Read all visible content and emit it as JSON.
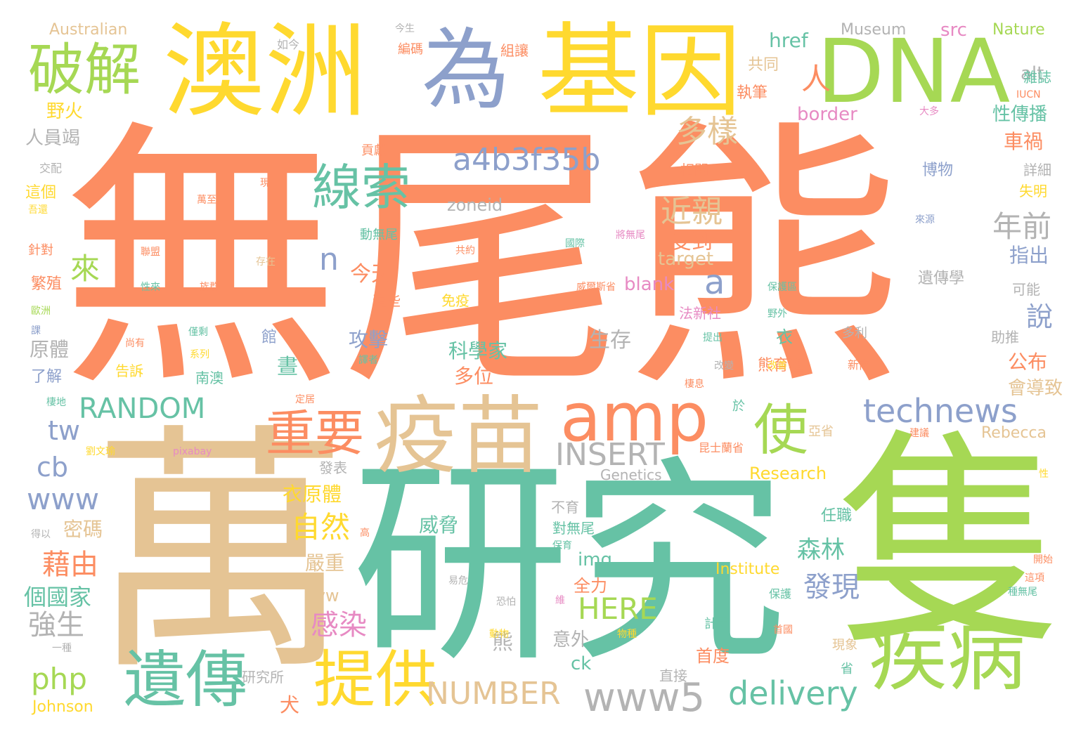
{
  "colors": {
    "orange": "#fc8d62",
    "green": "#a6d854",
    "teal": "#66c2a5",
    "tan": "#e5c494",
    "yellow": "#ffd92f",
    "blue": "#8da0cb",
    "pink": "#e78ac3",
    "gray": "#b3b3b3"
  },
  "words": [
    {
      "text": "無尾熊",
      "color": "orange"
    },
    {
      "text": "萬",
      "color": "tan"
    },
    {
      "text": "研究",
      "color": "teal"
    },
    {
      "text": "隻",
      "color": "green"
    },
    {
      "text": "澳洲",
      "color": "yellow"
    },
    {
      "text": "為",
      "color": "blue"
    },
    {
      "text": "基因",
      "color": "yellow"
    },
    {
      "text": "DNA",
      "color": "green"
    },
    {
      "text": "疫苗",
      "color": "tan"
    },
    {
      "text": "疾病",
      "color": "green"
    },
    {
      "text": "amp",
      "color": "orange"
    },
    {
      "text": "遺傳",
      "color": "teal"
    },
    {
      "text": "提供",
      "color": "yellow"
    },
    {
      "text": "破解",
      "color": "green"
    },
    {
      "text": "線索",
      "color": "teal"
    },
    {
      "text": "重要",
      "color": "orange"
    },
    {
      "text": "使",
      "color": "green"
    },
    {
      "text": "www5",
      "color": "gray"
    },
    {
      "text": "technews",
      "color": "blue"
    },
    {
      "text": "delivery",
      "color": "teal"
    },
    {
      "text": "a4b3f35b",
      "color": "blue"
    },
    {
      "text": "RANDOM",
      "color": "teal"
    },
    {
      "text": "INSERT",
      "color": "gray"
    },
    {
      "text": "NUMBER",
      "color": "tan"
    },
    {
      "text": "HERE",
      "color": "green"
    },
    {
      "text": "www",
      "color": "blue"
    },
    {
      "text": "php",
      "color": "green"
    },
    {
      "text": "cb",
      "color": "blue"
    },
    {
      "text": "tw",
      "color": "blue"
    },
    {
      "text": "a",
      "color": "blue"
    },
    {
      "text": "n",
      "color": "blue"
    },
    {
      "text": "多樣",
      "color": "tan"
    },
    {
      "text": "近親",
      "color": "tan"
    },
    {
      "text": "年前",
      "color": "gray"
    },
    {
      "text": "人",
      "color": "orange"
    },
    {
      "text": "來",
      "color": "green"
    },
    {
      "text": "自然",
      "color": "yellow"
    },
    {
      "text": "藉由",
      "color": "orange"
    },
    {
      "text": "感染",
      "color": "pink"
    },
    {
      "text": "發現",
      "color": "blue"
    },
    {
      "text": "森林",
      "color": "teal"
    },
    {
      "text": "強生",
      "color": "gray"
    },
    {
      "text": "個國家",
      "color": "teal"
    },
    {
      "text": "Australian",
      "color": "tan"
    },
    {
      "text": "Museum",
      "color": "gray"
    },
    {
      "text": "Nature",
      "color": "green"
    },
    {
      "text": "href",
      "color": "teal"
    },
    {
      "text": "src",
      "color": "pink"
    },
    {
      "text": "alt",
      "color": "gray"
    },
    {
      "text": "border",
      "color": "pink"
    },
    {
      "text": "zoneid",
      "color": "gray"
    },
    {
      "text": "target",
      "color": "tan"
    },
    {
      "text": "blank",
      "color": "pink"
    },
    {
      "text": "img",
      "color": "teal"
    },
    {
      "text": "avw",
      "color": "tan"
    },
    {
      "text": "ck",
      "color": "teal"
    },
    {
      "text": "Rebecca",
      "color": "tan"
    },
    {
      "text": "Research",
      "color": "yellow"
    },
    {
      "text": "Genetics",
      "color": "gray"
    },
    {
      "text": "Institute",
      "color": "yellow"
    },
    {
      "text": "Johnson",
      "color": "yellow"
    },
    {
      "text": "pixabay",
      "color": "pink"
    },
    {
      "text": "IUCN",
      "color": "orange"
    },
    {
      "text": "野火",
      "color": "yellow"
    },
    {
      "text": "人員竭",
      "color": "gray"
    },
    {
      "text": "共同",
      "color": "tan"
    },
    {
      "text": "執筆",
      "color": "orange"
    },
    {
      "text": "性傳播",
      "color": "teal"
    },
    {
      "text": "車禍",
      "color": "orange"
    },
    {
      "text": "受到",
      "color": "orange"
    },
    {
      "text": "指出",
      "color": "blue"
    },
    {
      "text": "今天",
      "color": "orange"
    },
    {
      "text": "攻擊",
      "color": "blue"
    },
    {
      "text": "生存",
      "color": "gray"
    },
    {
      "text": "科學家",
      "color": "teal"
    },
    {
      "text": "多位",
      "color": "orange"
    },
    {
      "text": "原體",
      "color": "gray"
    },
    {
      "text": "說",
      "color": "blue"
    },
    {
      "text": "公布",
      "color": "orange"
    },
    {
      "text": "衣",
      "color": "teal"
    },
    {
      "text": "會導致",
      "color": "tan"
    },
    {
      "text": "熊",
      "color": "gray"
    },
    {
      "text": "威脅",
      "color": "teal"
    },
    {
      "text": "嚴重",
      "color": "tan"
    },
    {
      "text": "衣原體",
      "color": "yellow"
    },
    {
      "text": "密碼",
      "color": "tan"
    },
    {
      "text": "意外",
      "color": "gray"
    },
    {
      "text": "全力",
      "color": "orange"
    },
    {
      "text": "首度",
      "color": "orange"
    },
    {
      "text": "犬",
      "color": "orange"
    },
    {
      "text": "研究所",
      "color": "gray"
    },
    {
      "text": "發表",
      "color": "gray"
    },
    {
      "text": "直接",
      "color": "gray"
    },
    {
      "text": "任職",
      "color": "teal"
    },
    {
      "text": "不育",
      "color": "gray"
    },
    {
      "text": "對無尾",
      "color": "teal"
    },
    {
      "text": "貢獻",
      "color": "orange"
    },
    {
      "text": "相關",
      "color": "orange"
    },
    {
      "text": "博物",
      "color": "blue"
    },
    {
      "text": "遺傳學",
      "color": "gray"
    },
    {
      "text": "失明",
      "color": "yellow"
    },
    {
      "text": "可能",
      "color": "gray"
    },
    {
      "text": "助推",
      "color": "gray"
    },
    {
      "text": "詳細",
      "color": "gray"
    },
    {
      "text": "雜誌",
      "color": "teal"
    },
    {
      "text": "組讓",
      "color": "orange"
    },
    {
      "text": "編碼",
      "color": "orange"
    },
    {
      "text": "如今",
      "color": "gray"
    },
    {
      "text": "今生",
      "color": "gray"
    },
    {
      "text": "交配",
      "color": "gray"
    },
    {
      "text": "這個",
      "color": "yellow"
    },
    {
      "text": "針對",
      "color": "orange"
    },
    {
      "text": "繁殖",
      "color": "orange"
    },
    {
      "text": "了解",
      "color": "blue"
    },
    {
      "text": "這些",
      "color": "orange"
    },
    {
      "text": "免疫",
      "color": "yellow"
    },
    {
      "text": "動無尾",
      "color": "teal"
    },
    {
      "text": "法新社",
      "color": "pink"
    },
    {
      "text": "熊育種",
      "color": "orange"
    },
    {
      "text": "南澳",
      "color": "teal"
    },
    {
      "text": "告訴",
      "color": "yellow"
    },
    {
      "text": "晝",
      "color": "teal"
    },
    {
      "text": "館",
      "color": "blue"
    },
    {
      "text": "於",
      "color": "teal"
    },
    {
      "text": "亞省",
      "color": "tan"
    },
    {
      "text": "昆士蘭省",
      "color": "orange"
    },
    {
      "text": "多利",
      "color": "gray"
    },
    {
      "text": "恐怕",
      "color": "gray"
    },
    {
      "text": "計畫",
      "color": "teal"
    },
    {
      "text": "省",
      "color": "teal"
    },
    {
      "text": "現象",
      "color": "tan"
    },
    {
      "text": "保護",
      "color": "teal"
    },
    {
      "text": "種無尾",
      "color": "teal"
    },
    {
      "text": "這項",
      "color": "orange"
    },
    {
      "text": "開始",
      "color": "orange"
    },
    {
      "text": "性",
      "color": "yellow"
    },
    {
      "text": "新南",
      "color": "orange"
    },
    {
      "text": "大多",
      "color": "pink"
    },
    {
      "text": "來源",
      "color": "blue"
    },
    {
      "text": "約",
      "color": "orange"
    },
    {
      "text": "現",
      "color": "orange"
    },
    {
      "text": "萬至",
      "color": "orange"
    },
    {
      "text": "聯盟",
      "color": "orange"
    },
    {
      "text": "存在",
      "color": "tan"
    },
    {
      "text": "族群",
      "color": "orange"
    },
    {
      "text": "性來",
      "color": "teal"
    },
    {
      "text": "歐洲",
      "color": "green"
    },
    {
      "text": "僅剩",
      "color": "teal"
    },
    {
      "text": "尚有",
      "color": "orange"
    },
    {
      "text": "系列",
      "color": "yellow"
    },
    {
      "text": "共約",
      "color": "orange"
    },
    {
      "text": "國際",
      "color": "teal"
    },
    {
      "text": "將無尾",
      "color": "pink"
    },
    {
      "text": "威爾斯省",
      "color": "orange"
    },
    {
      "text": "保護區",
      "color": "teal"
    },
    {
      "text": "野外",
      "color": "teal"
    },
    {
      "text": "提出",
      "color": "teal"
    },
    {
      "text": "改變",
      "color": "gray"
    },
    {
      "text": "改善",
      "color": "yellow"
    },
    {
      "text": "棲息",
      "color": "orange"
    },
    {
      "text": "建議",
      "color": "orange"
    },
    {
      "text": "棲地",
      "color": "teal"
    },
    {
      "text": "定居",
      "color": "orange"
    },
    {
      "text": "劉文瑜",
      "color": "yellow"
    },
    {
      "text": "得以",
      "color": "gray"
    },
    {
      "text": "高",
      "color": "orange"
    },
    {
      "text": "一種",
      "color": "gray"
    },
    {
      "text": "動物",
      "color": "yellow"
    },
    {
      "text": "物種",
      "color": "yellow"
    },
    {
      "text": "首國",
      "color": "orange"
    },
    {
      "text": "維",
      "color": "pink"
    },
    {
      "text": "保育",
      "color": "teal"
    },
    {
      "text": "易危",
      "color": "gray"
    },
    {
      "text": "譯者",
      "color": "teal"
    },
    {
      "text": "吾還",
      "color": "yellow"
    },
    {
      "text": "課",
      "color": "blue"
    }
  ]
}
